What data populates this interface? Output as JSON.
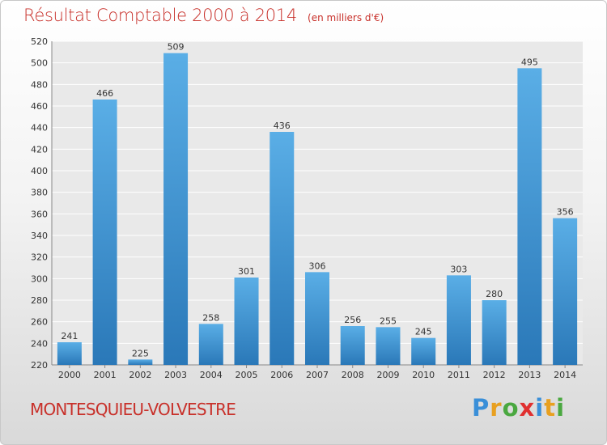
{
  "header": {
    "title": "Résultat Comptable 2000 à 2014",
    "unit": "(en milliers d'€)"
  },
  "footer": {
    "town": "MONTESQUIEU-VOLVESTRE",
    "logo": "Proxiti"
  },
  "colors": {
    "title": "#c8302a",
    "bar_light": "#5aaee6",
    "bar_dark": "#2a78b8",
    "logo_letters": [
      "#3a8fd8",
      "#e8a020",
      "#4aa840",
      "#e03030",
      "#3a8fd8",
      "#e8a020",
      "#4aa840"
    ]
  },
  "chart_data": {
    "type": "bar",
    "title": "Résultat Comptable 2000 à 2014",
    "subtitle": "(en milliers d'€)",
    "categories": [
      "2000",
      "2001",
      "2002",
      "2003",
      "2004",
      "2005",
      "2006",
      "2007",
      "2008",
      "2009",
      "2010",
      "2011",
      "2012",
      "2013",
      "2014"
    ],
    "values": [
      241,
      466,
      225,
      509,
      258,
      301,
      436,
      306,
      256,
      255,
      245,
      303,
      280,
      495,
      356
    ],
    "ylim": [
      220,
      520
    ],
    "yticks": [
      220,
      240,
      260,
      280,
      300,
      320,
      340,
      360,
      380,
      400,
      420,
      440,
      460,
      480,
      500,
      520
    ],
    "grid": true,
    "xlabel": "",
    "ylabel": ""
  }
}
